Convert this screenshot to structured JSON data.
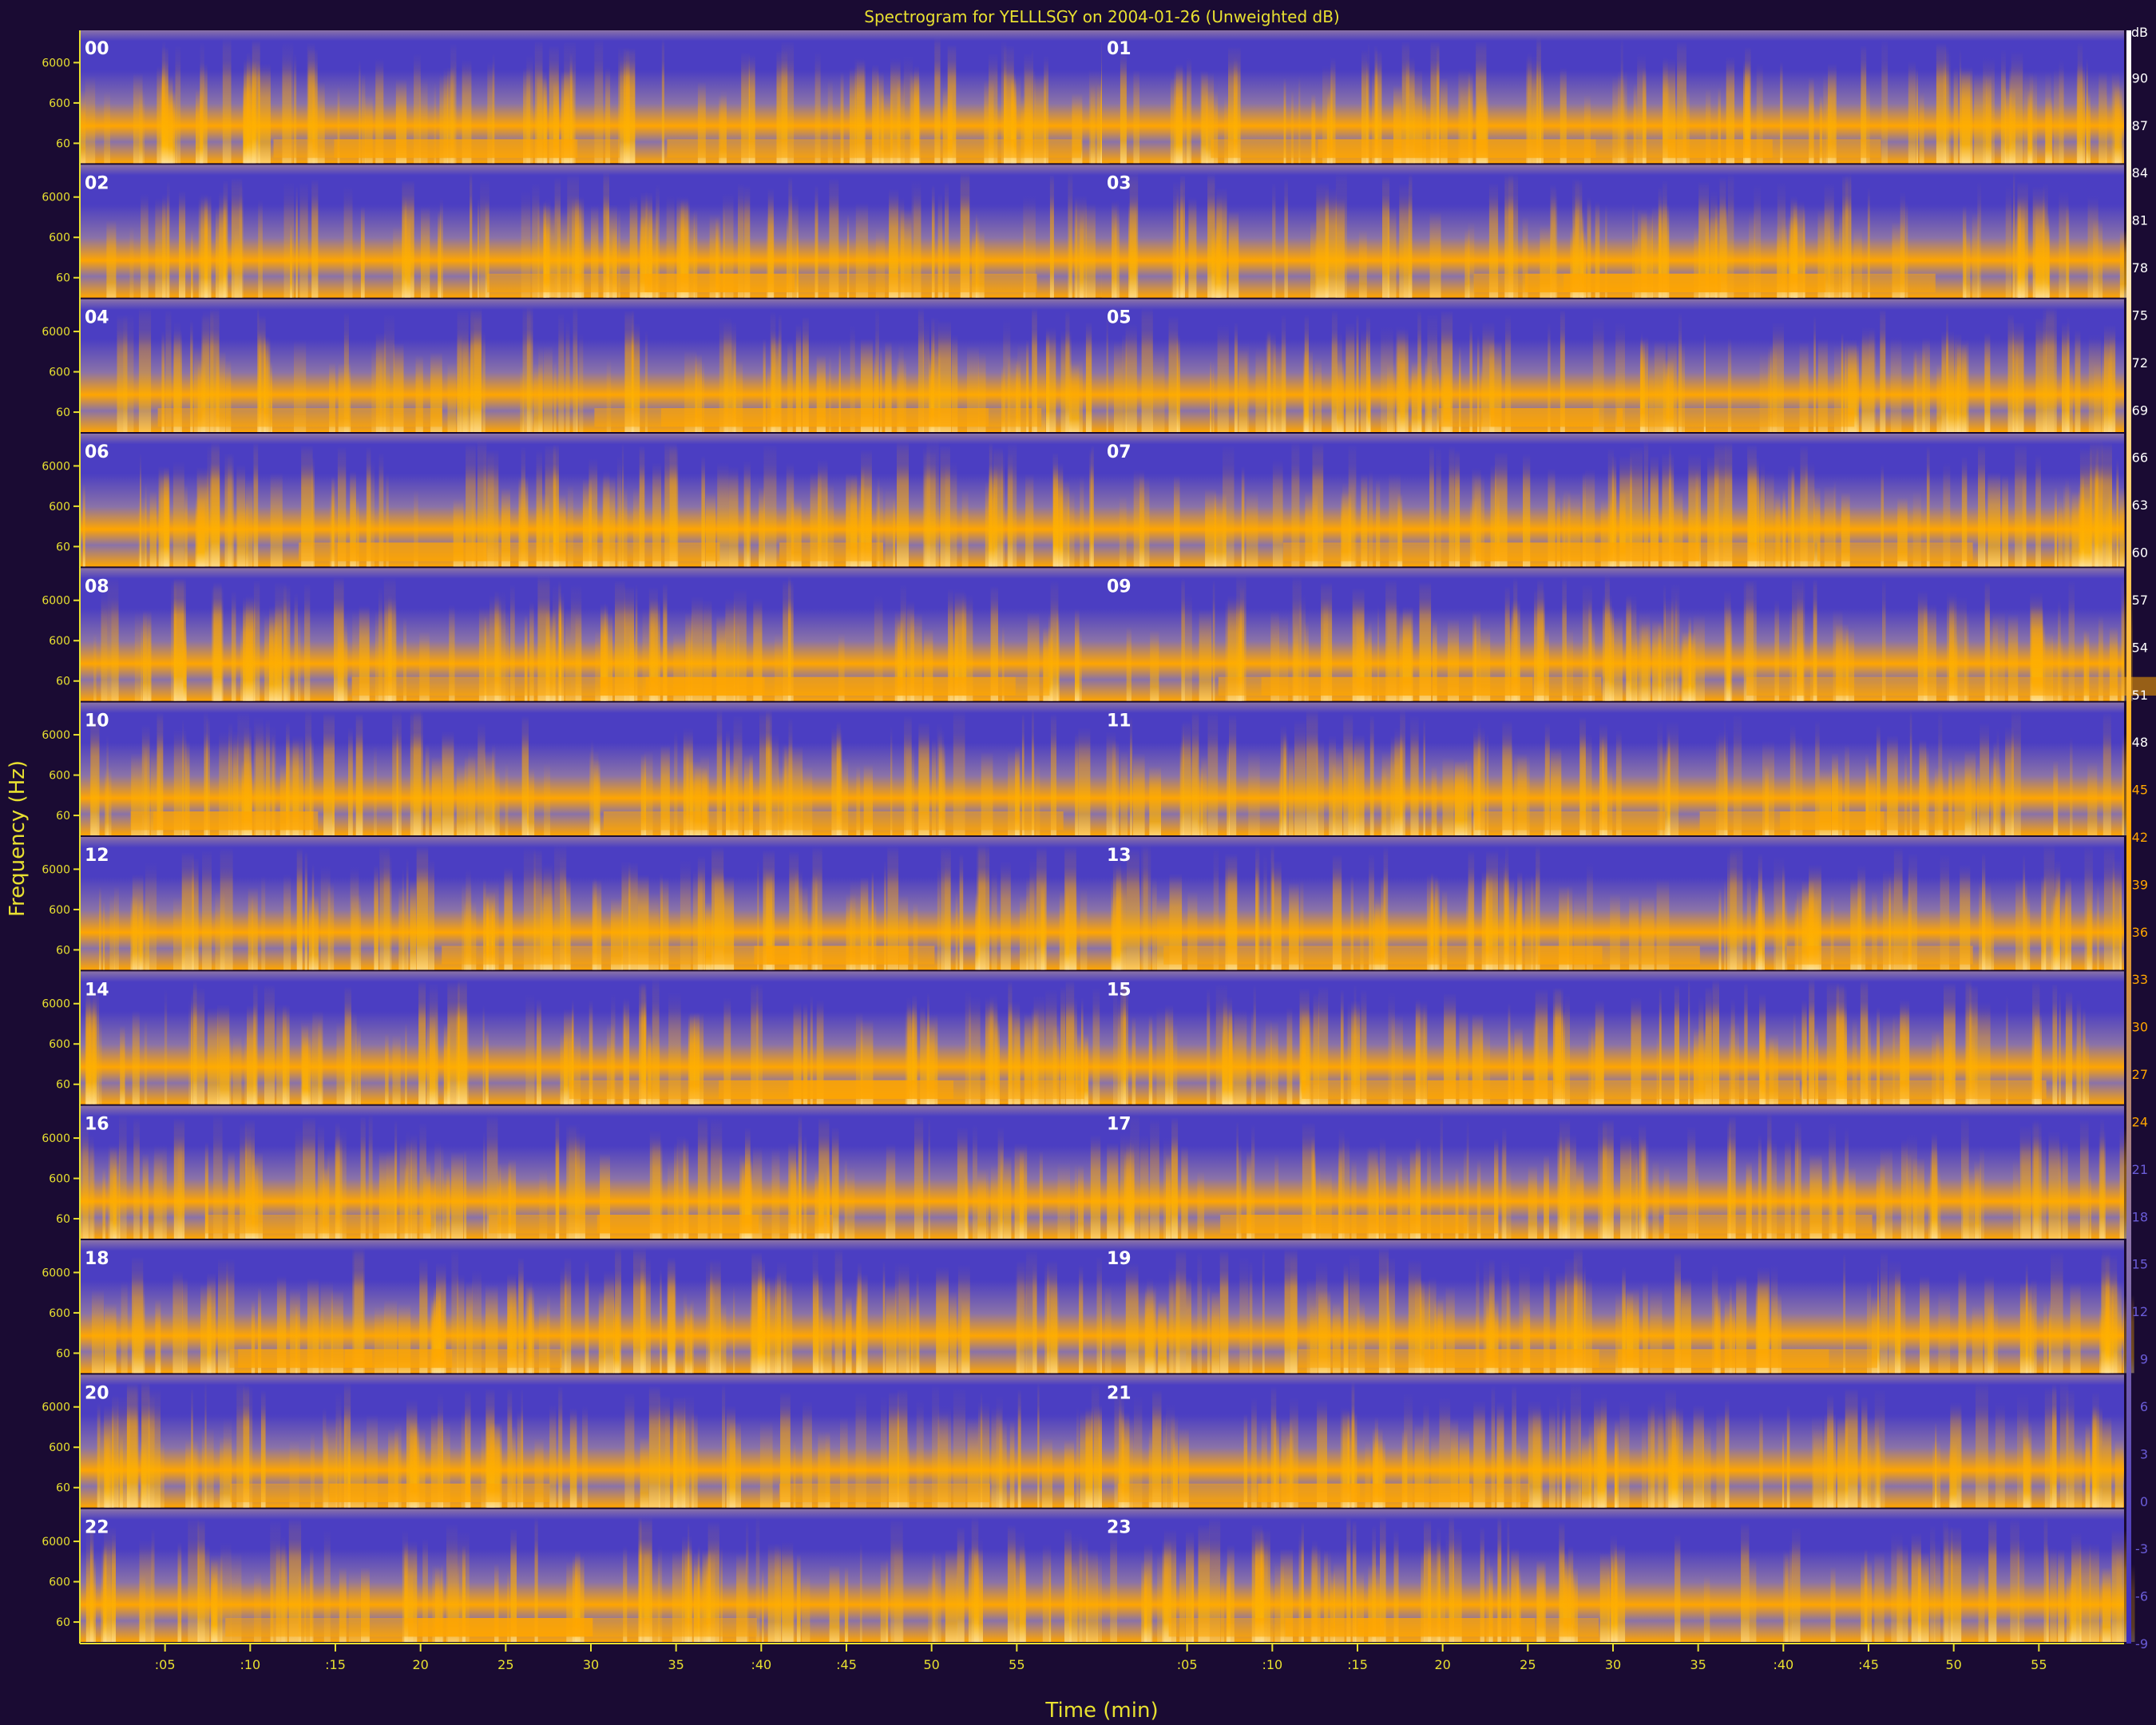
{
  "colors": {
    "background": "#1a0b33",
    "axis": "#e8e030",
    "label_text": "#e8e030",
    "panel_label": "#ffffff",
    "spec_low": "#4b3ec2",
    "spec_mid": "#8a72a8",
    "spec_high": "#ffa500",
    "spec_peak": "#ffe39a"
  },
  "chart_data": {
    "type": "heatmap",
    "title": "Spectrogram for YELLLSGY on 2004-01-26 (Unweighted dB)",
    "xlabel": "Time (min)",
    "ylabel": "Frequency (Hz)",
    "panel_labels": [
      "00",
      "01",
      "02",
      "03",
      "04",
      "05",
      "06",
      "07",
      "08",
      "09",
      "10",
      "11",
      "12",
      "13",
      "14",
      "15",
      "16",
      "17",
      "18",
      "19",
      "20",
      "21",
      "22",
      "23"
    ],
    "panel_layout": {
      "rows": 12,
      "columns": 2,
      "minutes_per_panel": 60
    },
    "x_ticks": [
      ":05",
      ":10",
      ":15",
      "20",
      "25",
      "30",
      "35",
      ":40",
      ":45",
      "50",
      "55"
    ],
    "x_range": [
      0,
      60
    ],
    "y_ticks": [
      "60",
      "600",
      "6000"
    ],
    "y_scale": "log",
    "colorbar": {
      "unit": "dB",
      "ticks": [
        "90",
        "87",
        "84",
        "81",
        "78",
        "75",
        "72",
        "69",
        "66",
        "63",
        "60",
        "57",
        "54",
        "51",
        "48",
        "45",
        "42",
        "39",
        "36",
        "33",
        "30",
        "27",
        "24",
        "21",
        "18",
        "15",
        "12",
        "9",
        "6",
        "3",
        "0",
        "-3",
        "-6",
        "-9"
      ],
      "range": [
        -9,
        93
      ]
    }
  }
}
